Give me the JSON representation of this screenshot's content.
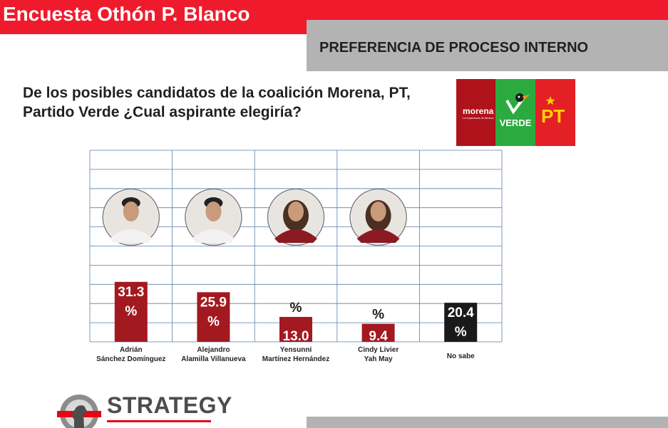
{
  "header": {
    "title": "Encuesta Othón P. Blanco",
    "subtitle": "PREFERENCIA DE PROCESO INTERNO",
    "question_line1": "De los posibles candidatos de la coalición Morena, PT,",
    "question_line2": "Partido Verde ¿Cual aspirante elegiría?"
  },
  "logos": {
    "morena": "morena",
    "morena_tagline": "La esperanza de México",
    "verde": "VERDE",
    "pt": "PT"
  },
  "footer": {
    "brand": "STRATEGY"
  },
  "colors": {
    "accent_red": "#ef1b2d",
    "bar_red": "#a31920",
    "bar_black": "#1a1a1a",
    "grid": "#5b7fa8",
    "band_gray": "#b3b3b3"
  },
  "chart_data": {
    "type": "bar",
    "title": "",
    "xlabel": "",
    "ylabel": "",
    "ylim": [
      0,
      100
    ],
    "grid": true,
    "legend": "none",
    "categories": [
      [
        "Adrián",
        "Sánchez Domínguez"
      ],
      [
        "Alejandro",
        "Alamilla Villanueva"
      ],
      [
        "Yensunni",
        "Martínez Hernández"
      ],
      [
        "Cindy Livier",
        "Yah May"
      ],
      [
        "No sabe"
      ]
    ],
    "values": [
      31.3,
      25.9,
      13.0,
      9.4,
      20.4
    ],
    "value_labels": [
      "31.3",
      "25.9",
      "13.0",
      "9.4",
      "20.4"
    ],
    "unit": "%",
    "bar_colors": [
      "#a31920",
      "#a31920",
      "#a31920",
      "#a31920",
      "#1a1a1a"
    ],
    "candidate_photos": [
      "avatar-adrian",
      "avatar-alejandro",
      "avatar-yensunni",
      "avatar-cindy",
      null
    ]
  }
}
